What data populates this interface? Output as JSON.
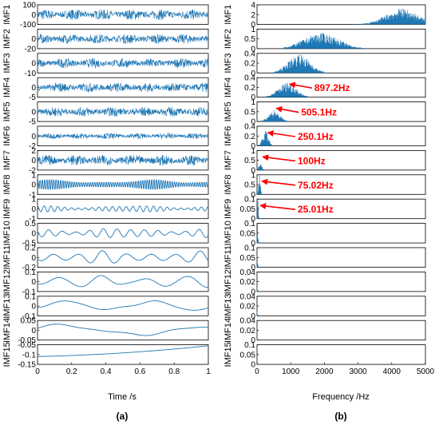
{
  "panels": {
    "left_caption": "(a)",
    "right_caption": "(b)"
  },
  "colors": {
    "signal": "#1f77b4",
    "annotation": "#ff0000",
    "axes": "#000000"
  },
  "chart_data": [
    {
      "type": "line",
      "title": "",
      "xlabel": "Time /s",
      "xlim": [
        0,
        1
      ],
      "xticks": [
        "0",
        "0.2",
        "0.4",
        "0.6",
        "0.8",
        "1"
      ],
      "grid": false,
      "series": [
        {
          "name": "IMF1",
          "ylim": [
            -100,
            100
          ],
          "yticks": [
            "100",
            "0",
            "-100"
          ],
          "shape": "noise",
          "amplitude": 0.55
        },
        {
          "name": "IMF2",
          "ylim": [
            -20,
            20
          ],
          "yticks": [
            "0",
            "-20"
          ],
          "shape": "noise",
          "amplitude": 0.5
        },
        {
          "name": "IMF3",
          "ylim": [
            -10,
            10
          ],
          "yticks": [
            "0",
            "-10"
          ],
          "shape": "noise",
          "amplitude": 0.5
        },
        {
          "name": "IMF4",
          "ylim": [
            -5,
            5
          ],
          "yticks": [
            "0",
            "-5"
          ],
          "shape": "noise",
          "amplitude": 0.5
        },
        {
          "name": "IMF5",
          "ylim": [
            -5,
            5
          ],
          "yticks": [
            "0",
            "-5"
          ],
          "shape": "noise",
          "amplitude": 0.5
        },
        {
          "name": "IMF6",
          "ylim": [
            -2,
            2
          ],
          "yticks": [
            "0",
            "-2"
          ],
          "shape": "noise",
          "amplitude": 0.3
        },
        {
          "name": "IMF7",
          "ylim": [
            -2,
            2
          ],
          "yticks": [
            "2",
            "0",
            "-2"
          ],
          "shape": "noise",
          "amplitude": 0.55
        },
        {
          "name": "IMF8",
          "ylim": [
            -1,
            1
          ],
          "yticks": [
            "1",
            "0",
            "-1"
          ],
          "shape": "osc",
          "frequency": 75,
          "amplitude": 0.55
        },
        {
          "name": "IMF9",
          "ylim": [
            -1,
            1
          ],
          "yticks": [
            "1",
            "0",
            "-1"
          ],
          "shape": "osc",
          "frequency": 25,
          "amplitude": 0.3
        },
        {
          "name": "IMF10",
          "ylim": [
            -0.5,
            0.5
          ],
          "yticks": [
            "0.5",
            "0",
            "-0.5"
          ],
          "shape": "osc",
          "frequency": 12.5,
          "amplitude": 0.45
        },
        {
          "name": "IMF11",
          "ylim": [
            -0.2,
            0.2
          ],
          "yticks": [
            "0.2",
            "0",
            "-0.2"
          ],
          "shape": "osc",
          "frequency": 7,
          "amplitude": 0.6
        },
        {
          "name": "IMF12",
          "ylim": [
            -0.1,
            0.1
          ],
          "yticks": [
            "0.1",
            "0",
            "-0.1"
          ],
          "shape": "osc",
          "frequency": 4,
          "amplitude": 0.6
        },
        {
          "name": "IMF13",
          "ylim": [
            -0.1,
            0.1
          ],
          "yticks": [
            "0.1",
            "0",
            "-0.1"
          ],
          "shape": "osc",
          "frequency": 2,
          "amplitude": 0.55
        },
        {
          "name": "IMF14",
          "ylim": [
            -0.05,
            0.05
          ],
          "yticks": [
            "0.05",
            "0",
            "-0.05"
          ],
          "shape": "osc",
          "frequency": 1.2,
          "amplitude": 0.6
        },
        {
          "name": "IMF15",
          "ylim": [
            -0.15,
            -0.05
          ],
          "yticks": [
            "-0.05",
            "-0.1",
            "-0.15"
          ],
          "shape": "trend",
          "start": -0.11,
          "end": -0.055
        }
      ]
    },
    {
      "type": "bar",
      "title": "",
      "xlabel": "Frequency /Hz",
      "xlim": [
        0,
        5000
      ],
      "xticks": [
        "0",
        "1000",
        "2000",
        "3000",
        "4000",
        "5000"
      ],
      "grid": false,
      "series": [
        {
          "name": "IMF1",
          "ylim": [
            0,
            4
          ],
          "yticks": [
            "4",
            "2",
            "0"
          ],
          "band": [
            2800,
            5000
          ],
          "peak_freq": 4300,
          "peak": 3.2
        },
        {
          "name": "IMF2",
          "ylim": [
            0,
            1
          ],
          "yticks": [
            "1",
            "0.5",
            "0"
          ],
          "band": [
            800,
            3200
          ],
          "peak_freq": 1900,
          "peak": 0.8
        },
        {
          "name": "IMF3",
          "ylim": [
            0,
            0.4
          ],
          "yticks": [
            "0.4",
            "0.2",
            "0"
          ],
          "band": [
            500,
            2000
          ],
          "peak_freq": 1250,
          "peak": 0.38
        },
        {
          "name": "IMF4",
          "ylim": [
            0,
            0.4
          ],
          "yticks": [
            "0.4",
            "0.2",
            "0"
          ],
          "band": [
            250,
            1500
          ],
          "peak_freq": 897.2,
          "peak": 0.3
        },
        {
          "name": "IMF5",
          "ylim": [
            0,
            1
          ],
          "yticks": [
            "1",
            "0.5",
            "0"
          ],
          "band": [
            100,
            900
          ],
          "peak_freq": 505.1,
          "peak": 0.55
        },
        {
          "name": "IMF6",
          "ylim": [
            0,
            0.4
          ],
          "yticks": [
            "0.4",
            "0.2",
            "0"
          ],
          "band": [
            50,
            450
          ],
          "peak_freq": 250.1,
          "peak": 0.3
        },
        {
          "name": "IMF7",
          "ylim": [
            0,
            1
          ],
          "yticks": [
            "1",
            "0.5",
            "0"
          ],
          "band": [
            20,
            250
          ],
          "peak_freq": 100,
          "peak": 0.3
        },
        {
          "name": "IMF8",
          "ylim": [
            0,
            1
          ],
          "yticks": [
            "1",
            "0.5",
            "0"
          ],
          "band": [
            10,
            130
          ],
          "peak_freq": 75.02,
          "peak": 0.95
        },
        {
          "name": "IMF9",
          "ylim": [
            0,
            0.1
          ],
          "yticks": [
            "0.1",
            "0.05",
            "0"
          ],
          "band": [
            5,
            60
          ],
          "peak_freq": 25.01,
          "peak": 0.09
        },
        {
          "name": "IMF10",
          "ylim": [
            0,
            0.1
          ],
          "yticks": [
            "0.1",
            "0.05",
            "0"
          ],
          "band": [
            2,
            30
          ],
          "peak_freq": 12.5,
          "peak": 0.1
        },
        {
          "name": "IMF11",
          "ylim": [
            0,
            0.1
          ],
          "yticks": [
            "0.1",
            "0.05",
            "0"
          ],
          "band": [
            1,
            20
          ],
          "peak_freq": 7,
          "peak": 0.04
        },
        {
          "name": "IMF12",
          "ylim": [
            0,
            0.04
          ],
          "yticks": [
            "0.04",
            "0.02",
            "0"
          ],
          "band": [
            1,
            10
          ],
          "peak_freq": 4,
          "peak": 0.01
        },
        {
          "name": "IMF13",
          "ylim": [
            0,
            0.04
          ],
          "yticks": [
            "0.04",
            "0.02",
            "0"
          ],
          "band": [
            0,
            6
          ],
          "peak_freq": 2,
          "peak": 0.008
        },
        {
          "name": "IMF14",
          "ylim": [
            0,
            0.04
          ],
          "yticks": [
            "0.04",
            "0.02",
            "0"
          ],
          "band": [
            0,
            4
          ],
          "peak_freq": 1.2,
          "peak": 0.004
        },
        {
          "name": "IMF15",
          "ylim": [
            0,
            0.1
          ],
          "yticks": [
            "0.1",
            "0.05",
            "0"
          ],
          "band": [
            0,
            2
          ],
          "peak_freq": 0.5,
          "peak": 0.003
        }
      ],
      "annotations": [
        {
          "text": "897.2Hz",
          "series": "IMF4",
          "freq": 897.2
        },
        {
          "text": "505.1Hz",
          "series": "IMF5",
          "freq": 505.1
        },
        {
          "text": "250.1Hz",
          "series": "IMF6",
          "freq": 250.1
        },
        {
          "text": "100Hz",
          "series": "IMF7",
          "freq": 100
        },
        {
          "text": "75.02Hz",
          "series": "IMF8",
          "freq": 75.02
        },
        {
          "text": "25.01Hz",
          "series": "IMF9",
          "freq": 25.01
        }
      ]
    }
  ]
}
